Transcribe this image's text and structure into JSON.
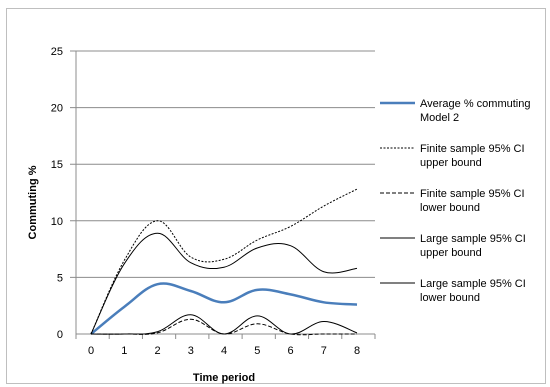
{
  "chart_data": {
    "type": "line",
    "xlabel": "Time period",
    "ylabel": "Commuting %",
    "xlim": [
      0,
      8
    ],
    "ylim": [
      0,
      25
    ],
    "x_ticks": [
      0,
      1,
      2,
      3,
      4,
      5,
      6,
      7,
      8
    ],
    "y_ticks": [
      0,
      5,
      10,
      15,
      20,
      25
    ],
    "grid": "horizontal",
    "legend_position": "right",
    "x": [
      0,
      1,
      2,
      3,
      4,
      5,
      6,
      7,
      8
    ],
    "series": [
      {
        "name": "Average % commuting Model 2",
        "label_lines": [
          "Average % commuting",
          "Model 2"
        ],
        "style": "solid-thick",
        "color": "#4a7ebb",
        "values": [
          0,
          2.4,
          4.4,
          3.8,
          2.8,
          3.9,
          3.5,
          2.8,
          2.6
        ]
      },
      {
        "name": "Finite sample 95% CI upper bound",
        "label_lines": [
          "Finite sample 95% CI",
          "upper bound"
        ],
        "style": "dotted",
        "color": "#000000",
        "values": [
          0,
          6.5,
          10.0,
          6.8,
          6.6,
          8.3,
          9.5,
          11.3,
          12.8
        ]
      },
      {
        "name": "Finite sample 95% CI lower bound",
        "label_lines": [
          "Finite sample 95% CI",
          "lower bound"
        ],
        "style": "dashed",
        "color": "#000000",
        "values": [
          0,
          0,
          0.1,
          1.3,
          0,
          0.9,
          0,
          0,
          0
        ]
      },
      {
        "name": "Large sample 95% CI upper bound",
        "label_lines": [
          "Large sample 95% CI",
          "upper bound"
        ],
        "style": "solid",
        "color": "#000000",
        "values": [
          0,
          6.2,
          8.9,
          6.3,
          5.9,
          7.6,
          7.8,
          5.5,
          5.8
        ]
      },
      {
        "name": "Large sample 95% CI lower bound",
        "label_lines": [
          "Large sample 95% CI",
          "lower bound"
        ],
        "style": "solid",
        "color": "#000000",
        "values": [
          0,
          0,
          0.2,
          1.7,
          0,
          1.6,
          0,
          1.1,
          0.1
        ]
      }
    ]
  }
}
